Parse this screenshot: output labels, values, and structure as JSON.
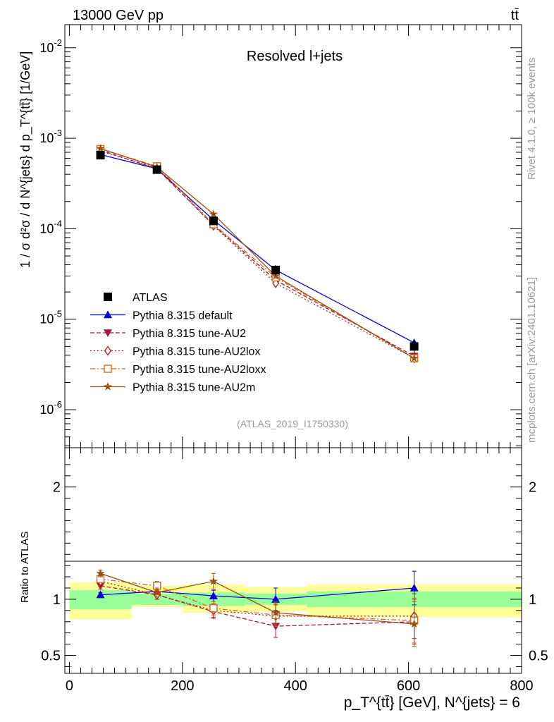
{
  "header": {
    "energy_label": "13000 GeV pp",
    "process_label": "tt̄"
  },
  "side_labels": {
    "rivet": "Rivet 4.1.0, ≥ 100k events",
    "source": "mcplots.cern.ch [arXiv:2401.10621]"
  },
  "chart_data": {
    "type": "line",
    "title": "Resolved l+jets",
    "analysis_id": "(ATLAS_2019_I1750330)",
    "xlabel": "p_T^{tt̄} [GeV], N^{jets} = 6",
    "ylabel": "1 / σ d²σ / d N^{jets} d p_T^{tt̄} [1/GeV]",
    "ratio_ylabel": "Ratio to ATLAS",
    "x_tick_labels": [
      "0",
      "200",
      "400",
      "600",
      "800"
    ],
    "xlim": [
      -8,
      800
    ],
    "ylim": [
      3.8e-07,
      0.018
    ],
    "y_tick_labels": [
      "10^-6",
      "10^-5",
      "10^-4",
      "10^-3",
      "10^-2"
    ],
    "ratio_ylim": [
      0.34,
      2.35
    ],
    "ratio_tick_labels": [
      "0.5",
      "1",
      "2"
    ],
    "x": [
      55,
      155,
      255,
      365,
      610
    ],
    "bins": [
      [
        0,
        110
      ],
      [
        110,
        200
      ],
      [
        200,
        310
      ],
      [
        310,
        420
      ],
      [
        420,
        800
      ]
    ],
    "data": {
      "name": "ATLAS",
      "values": [
        0.00065,
        0.00045,
        0.000122,
        3.5e-05,
        5e-06
      ],
      "errors": [
        5e-06,
        2e-05,
        1.2e-05,
        4.5e-06,
        8e-07
      ]
    },
    "ratio_bands": {
      "stat": [
        [
          0.91,
          1.08
        ],
        [
          0.95,
          1.05
        ],
        [
          0.94,
          1.06
        ],
        [
          0.95,
          1.05
        ],
        [
          0.93,
          1.07
        ]
      ],
      "total": [
        [
          0.82,
          1.15
        ],
        [
          0.93,
          1.12
        ],
        [
          0.88,
          1.13
        ],
        [
          0.89,
          1.11
        ],
        [
          0.84,
          1.13
        ]
      ]
    },
    "series": [
      {
        "name": "Pythia 8.315 default",
        "color": "#0000dd",
        "marker": "triangle-up",
        "dash": "",
        "values": [
          0.00066,
          0.00046,
          0.000125,
          3.5e-05,
          5.5e-06
        ],
        "ratio": [
          1.04,
          1.07,
          1.03,
          1.0,
          1.1
        ],
        "ratio_err": [
          0.02,
          0.03,
          0.05,
          0.1,
          0.15
        ]
      },
      {
        "name": "Pythia 8.315 tune-AU2",
        "color": "#a01a3a",
        "marker": "triangle-down",
        "dash": "6 3",
        "values": [
          0.00074,
          0.00046,
          0.00011,
          2.7e-05,
          3.9e-06
        ],
        "ratio": [
          1.12,
          1.04,
          0.89,
          0.76,
          0.8
        ],
        "ratio_err": [
          0.03,
          0.04,
          0.06,
          0.1,
          0.2
        ]
      },
      {
        "name": "Pythia 8.315 tune-AU2lox",
        "color": "#c02020",
        "marker": "diamond-open",
        "dash": "2 3",
        "values": [
          0.00072,
          0.00047,
          0.000108,
          2.5e-05,
          3.7e-06
        ],
        "ratio": [
          1.16,
          1.04,
          0.9,
          0.85,
          0.85
        ],
        "ratio_err": [
          0.03,
          0.04,
          0.06,
          0.1,
          0.2
        ]
      },
      {
        "name": "Pythia 8.315 tune-AU2loxx",
        "color": "#d2691e",
        "marker": "square-open",
        "dash": "7 3 2 3",
        "values": [
          0.00076,
          0.00049,
          0.000112,
          2.9e-05,
          3.7e-06
        ],
        "ratio": [
          1.18,
          1.12,
          0.92,
          0.86,
          0.81
        ],
        "ratio_err": [
          0.03,
          0.04,
          0.06,
          0.1,
          0.2
        ]
      },
      {
        "name": "Pythia 8.315 tune-AU2m",
        "color": "#9a5010",
        "marker": "star",
        "dash": "",
        "values": [
          0.00077,
          0.00048,
          0.000145,
          3e-05,
          3.7e-06
        ],
        "ratio": [
          1.23,
          1.06,
          1.16,
          0.88,
          0.78
        ],
        "ratio_err": [
          0.03,
          0.04,
          0.07,
          0.1,
          0.2
        ]
      }
    ]
  }
}
